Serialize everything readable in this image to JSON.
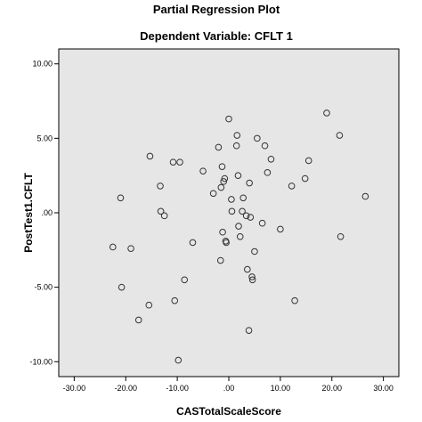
{
  "chart_data": {
    "type": "scatter",
    "title": "Partial Regression Plot",
    "subtitle": "Dependent Variable: CFLT 1",
    "xlabel": "CASTotalScaleScore",
    "ylabel": "PostTest1.CFLT",
    "xlim": [
      -33,
      33
    ],
    "ylim": [
      -11,
      11
    ],
    "x_ticks": [
      -30,
      -20,
      -10,
      0,
      10,
      20,
      30
    ],
    "x_tick_labels": [
      "-30.00",
      "-20.00",
      "-10.00",
      ".00",
      "10.00",
      "20.00",
      "30.00"
    ],
    "y_ticks": [
      -10,
      -5,
      0,
      5,
      10
    ],
    "y_tick_labels": [
      "-10.00",
      "-5.00",
      ".00",
      "5.00",
      "10.00"
    ],
    "grid": false,
    "plot_background": "#e6e6e6",
    "marker": "open-circle",
    "points": [
      {
        "x": -22.5,
        "y": -2.3
      },
      {
        "x": -21.0,
        "y": 1.0
      },
      {
        "x": -20.8,
        "y": -5.0
      },
      {
        "x": -19.0,
        "y": -2.4
      },
      {
        "x": -17.5,
        "y": -7.2
      },
      {
        "x": -15.5,
        "y": -6.2
      },
      {
        "x": -15.3,
        "y": 3.8
      },
      {
        "x": -13.3,
        "y": 1.8
      },
      {
        "x": -13.2,
        "y": 0.1
      },
      {
        "x": -12.5,
        "y": -0.2
      },
      {
        "x": -10.8,
        "y": 3.4
      },
      {
        "x": -10.5,
        "y": -5.9
      },
      {
        "x": -9.8,
        "y": -9.9
      },
      {
        "x": -9.5,
        "y": 3.4
      },
      {
        "x": -8.6,
        "y": -4.5
      },
      {
        "x": -7.0,
        "y": -2.0
      },
      {
        "x": -5.0,
        "y": 2.8
      },
      {
        "x": -3.0,
        "y": 1.3
      },
      {
        "x": -2.0,
        "y": 4.4
      },
      {
        "x": -1.6,
        "y": -3.2
      },
      {
        "x": -1.5,
        "y": 1.7
      },
      {
        "x": -1.3,
        "y": 3.1
      },
      {
        "x": -1.2,
        "y": -1.3
      },
      {
        "x": -1.0,
        "y": 2.1
      },
      {
        "x": -0.8,
        "y": 2.3
      },
      {
        "x": -0.6,
        "y": -1.9
      },
      {
        "x": -0.5,
        "y": -2.0
      },
      {
        "x": 0.0,
        "y": 6.3
      },
      {
        "x": 0.5,
        "y": 0.9
      },
      {
        "x": 0.6,
        "y": 0.1
      },
      {
        "x": 1.5,
        "y": 4.5
      },
      {
        "x": 1.6,
        "y": 5.2
      },
      {
        "x": 1.8,
        "y": 2.5
      },
      {
        "x": 1.9,
        "y": -0.9
      },
      {
        "x": 2.2,
        "y": -1.6
      },
      {
        "x": 2.6,
        "y": 0.1
      },
      {
        "x": 2.8,
        "y": 1.0
      },
      {
        "x": 3.4,
        "y": -0.2
      },
      {
        "x": 3.6,
        "y": -3.8
      },
      {
        "x": 3.9,
        "y": -7.9
      },
      {
        "x": 4.0,
        "y": 2.0
      },
      {
        "x": 4.2,
        "y": -0.3
      },
      {
        "x": 4.5,
        "y": -4.3
      },
      {
        "x": 4.6,
        "y": -4.5
      },
      {
        "x": 5.0,
        "y": -2.6
      },
      {
        "x": 5.5,
        "y": 5.0
      },
      {
        "x": 6.5,
        "y": -0.7
      },
      {
        "x": 7.0,
        "y": 4.5
      },
      {
        "x": 7.5,
        "y": 2.7
      },
      {
        "x": 8.2,
        "y": 3.6
      },
      {
        "x": 10.0,
        "y": -1.1
      },
      {
        "x": 12.2,
        "y": 1.8
      },
      {
        "x": 12.8,
        "y": -5.9
      },
      {
        "x": 14.8,
        "y": 2.3
      },
      {
        "x": 15.5,
        "y": 3.5
      },
      {
        "x": 19.0,
        "y": 6.7
      },
      {
        "x": 21.5,
        "y": 5.2
      },
      {
        "x": 21.7,
        "y": -1.6
      },
      {
        "x": 26.5,
        "y": 1.1
      }
    ]
  }
}
